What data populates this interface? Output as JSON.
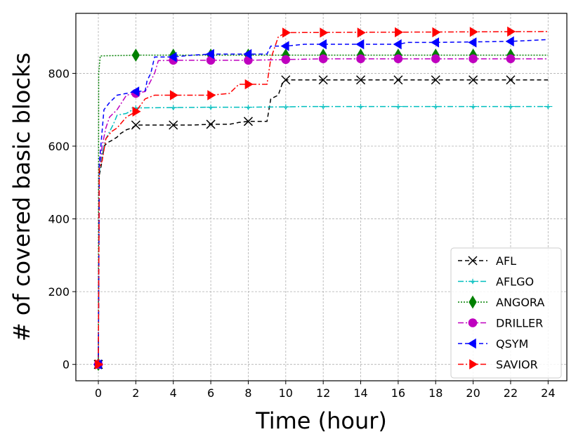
{
  "chart_data": {
    "type": "line",
    "xlabel": "Time (hour)",
    "ylabel": "# of covered basic blocks",
    "xlim": [
      -1.2,
      25
    ],
    "ylim": [
      -45,
      965
    ],
    "xticks": [
      0,
      2,
      4,
      6,
      8,
      10,
      12,
      14,
      16,
      18,
      20,
      22,
      24
    ],
    "yticks": [
      0,
      200,
      400,
      600,
      800
    ],
    "grid": true,
    "legend_position": "lower-right",
    "series": [
      {
        "name": "AFL",
        "color": "#000000",
        "dash": "6,4",
        "marker": "x",
        "points": [
          [
            0,
            0
          ],
          [
            0.05,
            520
          ],
          [
            0.2,
            560
          ],
          [
            0.3,
            600
          ],
          [
            0.5,
            610
          ],
          [
            0.7,
            615
          ],
          [
            1,
            625
          ],
          [
            1.2,
            635
          ],
          [
            1.5,
            645
          ],
          [
            1.8,
            650
          ],
          [
            2,
            658
          ],
          [
            3,
            658
          ],
          [
            4,
            658
          ],
          [
            5,
            658
          ],
          [
            6,
            660
          ],
          [
            7,
            660
          ],
          [
            7.5,
            665
          ],
          [
            8,
            668
          ],
          [
            9,
            668
          ],
          [
            9.2,
            730
          ],
          [
            9.6,
            740
          ],
          [
            9.8,
            770
          ],
          [
            10,
            782
          ],
          [
            24,
            782
          ]
        ],
        "markers": [
          [
            0,
            0
          ],
          [
            2,
            658
          ],
          [
            4,
            658
          ],
          [
            6,
            660
          ],
          [
            8,
            668
          ],
          [
            10,
            782
          ],
          [
            12,
            782
          ],
          [
            14,
            782
          ],
          [
            16,
            782
          ],
          [
            18,
            782
          ],
          [
            20,
            782
          ],
          [
            22,
            782
          ]
        ]
      },
      {
        "name": "AFLGO",
        "color": "#00bfbf",
        "dash": "8,3,2,3",
        "marker": "tri",
        "points": [
          [
            0,
            0
          ],
          [
            0.05,
            530
          ],
          [
            0.2,
            580
          ],
          [
            0.4,
            620
          ],
          [
            0.6,
            640
          ],
          [
            0.8,
            660
          ],
          [
            1,
            685
          ],
          [
            1.5,
            690
          ],
          [
            2,
            705
          ],
          [
            4,
            706
          ],
          [
            6,
            707
          ],
          [
            8,
            707
          ],
          [
            10,
            708
          ],
          [
            11,
            709
          ],
          [
            24,
            709
          ]
        ],
        "markers": [
          [
            0,
            0
          ],
          [
            2,
            705
          ],
          [
            4,
            706
          ],
          [
            6,
            707
          ],
          [
            8,
            707
          ],
          [
            10,
            708
          ],
          [
            12,
            709
          ],
          [
            14,
            709
          ],
          [
            16,
            709
          ],
          [
            18,
            709
          ],
          [
            20,
            709
          ],
          [
            22,
            709
          ],
          [
            24,
            709
          ]
        ]
      },
      {
        "name": "ANGORA",
        "color": "#008000",
        "dash": "2,2",
        "marker": "diamond",
        "points": [
          [
            0,
            0
          ],
          [
            0.02,
            800
          ],
          [
            0.1,
            848
          ],
          [
            2,
            850
          ],
          [
            24,
            850
          ]
        ],
        "markers": [
          [
            0,
            0
          ],
          [
            2,
            850
          ],
          [
            4,
            850
          ],
          [
            6,
            850
          ],
          [
            8,
            850
          ],
          [
            10,
            850
          ],
          [
            12,
            850
          ],
          [
            14,
            850
          ],
          [
            16,
            850
          ],
          [
            18,
            850
          ],
          [
            20,
            850
          ],
          [
            22,
            850
          ]
        ]
      },
      {
        "name": "DRILLER",
        "color": "#bf00bf",
        "dash": "8,3,2,3",
        "marker": "circle",
        "points": [
          [
            0,
            0
          ],
          [
            0.05,
            540
          ],
          [
            0.2,
            600
          ],
          [
            0.4,
            650
          ],
          [
            0.6,
            680
          ],
          [
            1,
            700
          ],
          [
            1.5,
            740
          ],
          [
            2,
            745
          ],
          [
            2.5,
            750
          ],
          [
            3,
            800
          ],
          [
            3.2,
            835
          ],
          [
            4,
            836
          ],
          [
            6,
            836
          ],
          [
            8,
            836
          ],
          [
            10,
            838
          ],
          [
            12,
            840
          ],
          [
            24,
            840
          ]
        ],
        "markers": [
          [
            0,
            0
          ],
          [
            2,
            745
          ],
          [
            4,
            836
          ],
          [
            6,
            836
          ],
          [
            8,
            836
          ],
          [
            10,
            838
          ],
          [
            12,
            840
          ],
          [
            14,
            840
          ],
          [
            16,
            840
          ],
          [
            18,
            840
          ],
          [
            20,
            840
          ],
          [
            22,
            840
          ]
        ]
      },
      {
        "name": "QSYM",
        "color": "#0000ff",
        "dash": "6,4",
        "marker": "ltri",
        "points": [
          [
            0,
            0
          ],
          [
            0.05,
            550
          ],
          [
            0.3,
            700
          ],
          [
            0.6,
            720
          ],
          [
            1,
            740
          ],
          [
            2,
            750
          ],
          [
            2.5,
            752
          ],
          [
            2.6,
            780
          ],
          [
            2.8,
            800
          ],
          [
            3,
            845
          ],
          [
            4,
            845
          ],
          [
            5,
            850
          ],
          [
            6,
            853
          ],
          [
            8,
            853
          ],
          [
            9,
            853
          ],
          [
            9.2,
            875
          ],
          [
            10,
            875
          ],
          [
            11,
            880
          ],
          [
            12,
            880
          ],
          [
            14,
            880
          ],
          [
            16,
            880
          ],
          [
            16.5,
            885
          ],
          [
            18,
            885
          ],
          [
            22,
            888
          ],
          [
            24,
            893
          ]
        ],
        "markers": [
          [
            0,
            0
          ],
          [
            2,
            750
          ],
          [
            4,
            845
          ],
          [
            6,
            853
          ],
          [
            8,
            853
          ],
          [
            10,
            875
          ],
          [
            12,
            880
          ],
          [
            14,
            880
          ],
          [
            16,
            880
          ],
          [
            18,
            885
          ],
          [
            20,
            885
          ],
          [
            22,
            888
          ]
        ]
      },
      {
        "name": "SAVIOR",
        "color": "#ff0000",
        "dash": "8,3,2,3",
        "marker": "rtri",
        "points": [
          [
            0,
            0
          ],
          [
            0.05,
            540
          ],
          [
            0.2,
            560
          ],
          [
            0.4,
            620
          ],
          [
            0.7,
            640
          ],
          [
            1,
            650
          ],
          [
            1.5,
            680
          ],
          [
            2,
            695
          ],
          [
            2.5,
            730
          ],
          [
            3,
            740
          ],
          [
            4,
            740
          ],
          [
            5,
            740
          ],
          [
            6,
            740
          ],
          [
            7,
            745
          ],
          [
            7.5,
            770
          ],
          [
            8,
            770
          ],
          [
            9,
            770
          ],
          [
            9.2,
            840
          ],
          [
            9.6,
            900
          ],
          [
            10,
            912
          ],
          [
            24,
            915
          ]
        ],
        "markers": [
          [
            0,
            0
          ],
          [
            2,
            695
          ],
          [
            4,
            740
          ],
          [
            6,
            740
          ],
          [
            8,
            770
          ],
          [
            10,
            912
          ],
          [
            12,
            912
          ],
          [
            14,
            912
          ],
          [
            16,
            913
          ],
          [
            18,
            913
          ],
          [
            20,
            914
          ],
          [
            22,
            915
          ]
        ]
      }
    ]
  }
}
